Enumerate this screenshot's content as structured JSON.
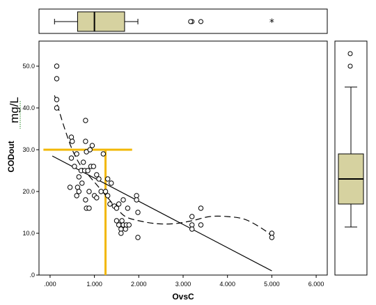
{
  "chart_data": {
    "type": "scatter",
    "xlabel": "OvsC",
    "ylabel": "CODout",
    "unit_annotation": "mg/L",
    "x_ticks": [
      ".000",
      "1.000",
      "2.000",
      "3.000",
      "4.000",
      "5.000",
      "6.000"
    ],
    "y_ticks": [
      ".0",
      "10.0",
      "20.0",
      "30.0",
      "40.0",
      "50.0"
    ],
    "y_tick_values": [
      0,
      10,
      20,
      30,
      40,
      50
    ],
    "xlim": [
      -0.25,
      6.25
    ],
    "ylim": [
      0,
      56
    ],
    "points": [
      [
        0.15,
        50.0
      ],
      [
        0.15,
        47.0
      ],
      [
        0.15,
        42.0
      ],
      [
        0.15,
        40.0
      ],
      [
        0.48,
        33.0
      ],
      [
        0.5,
        32.0
      ],
      [
        0.6,
        29.0
      ],
      [
        0.55,
        26.0
      ],
      [
        0.48,
        28.0
      ],
      [
        0.45,
        21.0
      ],
      [
        0.6,
        19.0
      ],
      [
        0.62,
        21.0
      ],
      [
        0.65,
        20.0
      ],
      [
        0.65,
        23.5
      ],
      [
        0.7,
        25.0
      ],
      [
        0.72,
        22.0
      ],
      [
        0.75,
        27.0
      ],
      [
        0.78,
        25.0
      ],
      [
        0.8,
        37.0
      ],
      [
        0.8,
        32.0
      ],
      [
        0.82,
        29.5
      ],
      [
        0.85,
        25.0
      ],
      [
        0.88,
        20.0
      ],
      [
        0.8,
        18.0
      ],
      [
        0.82,
        16.0
      ],
      [
        0.88,
        16.0
      ],
      [
        0.9,
        30.0
      ],
      [
        0.92,
        26.0
      ],
      [
        0.95,
        31.0
      ],
      [
        0.98,
        26.0
      ],
      [
        1.0,
        19.0
      ],
      [
        1.05,
        18.5
      ],
      [
        1.05,
        24.0
      ],
      [
        1.1,
        23.0
      ],
      [
        1.15,
        20.0
      ],
      [
        1.2,
        29.0
      ],
      [
        1.25,
        20.0
      ],
      [
        1.3,
        23.0
      ],
      [
        1.3,
        19.0
      ],
      [
        1.35,
        17.0
      ],
      [
        1.38,
        22.0
      ],
      [
        1.45,
        16.5
      ],
      [
        1.5,
        16.0
      ],
      [
        1.5,
        13.0
      ],
      [
        1.55,
        12.0
      ],
      [
        1.55,
        17.0
      ],
      [
        1.6,
        11.0
      ],
      [
        1.6,
        10.0
      ],
      [
        1.62,
        13.0
      ],
      [
        1.65,
        18.0
      ],
      [
        1.65,
        12.0
      ],
      [
        1.7,
        11.0
      ],
      [
        1.72,
        12.0
      ],
      [
        1.75,
        16.0
      ],
      [
        1.78,
        12.0
      ],
      [
        1.95,
        19.0
      ],
      [
        1.95,
        18.0
      ],
      [
        1.98,
        15.0
      ],
      [
        1.98,
        9.0
      ],
      [
        3.2,
        14.0
      ],
      [
        3.2,
        12.0
      ],
      [
        3.2,
        11.0
      ],
      [
        3.4,
        16.0
      ],
      [
        3.4,
        12.0
      ],
      [
        5.0,
        10.0
      ],
      [
        5.0,
        9.0
      ]
    ],
    "fit_line": {
      "x": [
        0.05,
        5.0
      ],
      "y": [
        28.5,
        1.0
      ]
    },
    "loess_curve": {
      "x": [
        0.1,
        0.3,
        0.5,
        0.7,
        0.9,
        1.1,
        1.3,
        1.5,
        1.7,
        2.0,
        2.4,
        2.8,
        3.2,
        3.6,
        4.0,
        4.4,
        4.8,
        5.0
      ],
      "y": [
        43.0,
        36.0,
        30.0,
        26.0,
        23.5,
        21.0,
        18.5,
        16.0,
        14.0,
        13.0,
        12.3,
        12.3,
        13.0,
        14.0,
        14.0,
        13.3,
        11.0,
        9.3
      ]
    },
    "guide_lines": {
      "color": "#F2B705",
      "x_value": 1.25,
      "y_value": 30.0,
      "x_start": -0.15,
      "x_end": 1.85
    },
    "top_boxplot": {
      "min": 0.1,
      "q1": 0.62,
      "median": 1.0,
      "q3": 1.68,
      "max": 1.98,
      "outliers": [
        3.2,
        3.4
      ],
      "extreme": [
        5.0
      ]
    },
    "right_boxplot": {
      "min": 11.5,
      "q1": 17.0,
      "median": 23.0,
      "q3": 29.0,
      "max": 45.0,
      "outliers": [
        50.0,
        53.0
      ]
    },
    "box_fill": "#D6D2A0"
  }
}
